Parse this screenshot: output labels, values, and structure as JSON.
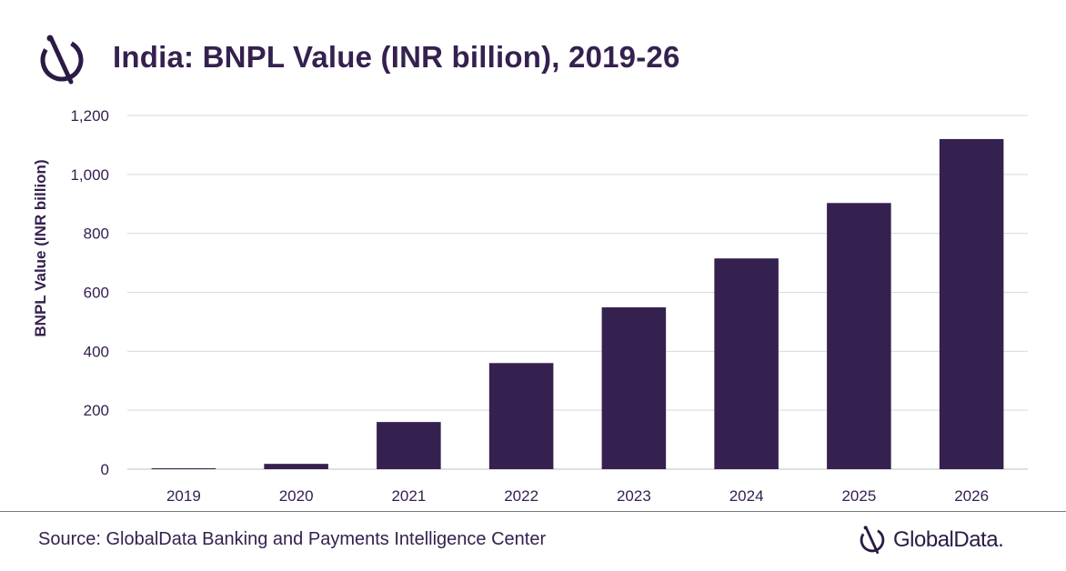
{
  "header": {
    "title": "India: BNPL Value (INR billion), 2019-26",
    "logo_icon": "globaldata-logo-icon"
  },
  "footer": {
    "source": "Source: GlobalData Banking and Payments Intelligence Center",
    "brand_name": "GlobalData.",
    "brand_icon": "globaldata-logo-icon"
  },
  "colors": {
    "bar": "#35214f",
    "text": "#35214f",
    "grid": "#d9d9d9",
    "axis": "#bfbfbf"
  },
  "chart_data": {
    "type": "bar",
    "title": "India: BNPL Value (INR billion), 2019-26",
    "xlabel": "",
    "ylabel": "BNPL Value (INR billion)",
    "categories": [
      "2019",
      "2020",
      "2021",
      "2022",
      "2023",
      "2024",
      "2025",
      "2026"
    ],
    "values": [
      3,
      18,
      160,
      360,
      549,
      715,
      903,
      1120
    ],
    "ylim": [
      0,
      1200
    ],
    "yticks": [
      0,
      200,
      400,
      600,
      800,
      1000,
      1200
    ],
    "ytick_labels": [
      "0",
      "200",
      "400",
      "600",
      "800",
      "1,000",
      "1,200"
    ],
    "grid": true,
    "legend": "none"
  }
}
